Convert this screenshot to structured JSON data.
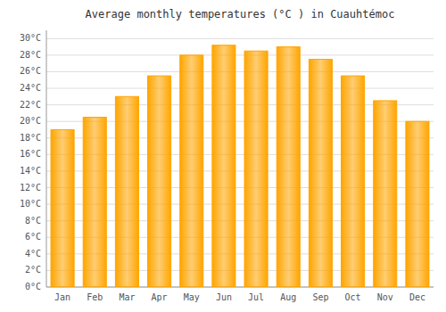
{
  "chart_data": {
    "type": "bar",
    "title": "Average monthly temperatures (°C ) in Cuauhtémoc",
    "categories": [
      "Jan",
      "Feb",
      "Mar",
      "Apr",
      "May",
      "Jun",
      "Jul",
      "Aug",
      "Sep",
      "Oct",
      "Nov",
      "Dec"
    ],
    "values": [
      19.0,
      20.5,
      23.0,
      25.5,
      28.0,
      29.2,
      28.5,
      29.0,
      27.5,
      25.5,
      22.5,
      20.0
    ],
    "color": "#FFA500",
    "ylim": [
      0,
      31
    ],
    "yticks": [
      {
        "value": 0,
        "label": "0°C"
      },
      {
        "value": 2,
        "label": "2°C"
      },
      {
        "value": 4,
        "label": "4°C"
      },
      {
        "value": 6,
        "label": "6°C"
      },
      {
        "value": 8,
        "label": "8°C"
      },
      {
        "value": 10,
        "label": "10°C"
      },
      {
        "value": 12,
        "label": "12°C"
      },
      {
        "value": 14,
        "label": "14°C"
      },
      {
        "value": 16,
        "label": "16°C"
      },
      {
        "value": 18,
        "label": "18°C"
      },
      {
        "value": 20,
        "label": "20°C"
      },
      {
        "value": 22,
        "label": "22°C"
      },
      {
        "value": 24,
        "label": "24°C"
      },
      {
        "value": 26,
        "label": "26°C"
      },
      {
        "value": 28,
        "label": "28°C"
      },
      {
        "value": 30,
        "label": "30°C"
      }
    ],
    "grid": true
  }
}
